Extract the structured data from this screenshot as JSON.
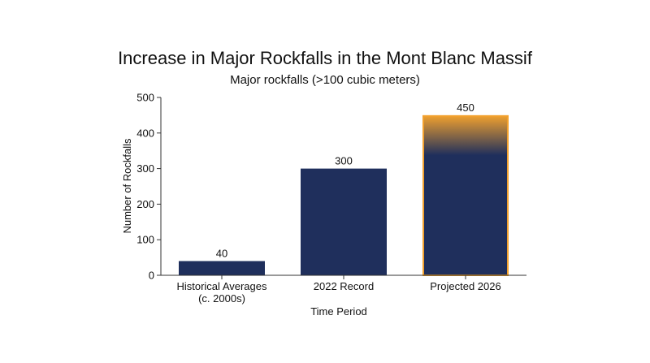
{
  "chart_data": {
    "type": "bar",
    "title": "Increase in Major Rockfalls in the Mont Blanc Massif",
    "subtitle": "Major rockfalls (>100 cubic meters)",
    "xlabel": "Time Period",
    "ylabel": "Number of Rockfalls",
    "categories": [
      [
        "Historical Averages",
        "(c. 2000s)"
      ],
      [
        "2022 Record"
      ],
      [
        "Projected 2026"
      ]
    ],
    "values": [
      40,
      300,
      450
    ],
    "data_labels": [
      "40",
      "300",
      "450"
    ],
    "ylim": [
      0,
      500
    ],
    "yticks": [
      0,
      100,
      200,
      300,
      400,
      500
    ],
    "grid": false,
    "colors": {
      "bar": "#1f2f5c",
      "highlight": "#f2a12e"
    },
    "highlight_index": 2
  }
}
